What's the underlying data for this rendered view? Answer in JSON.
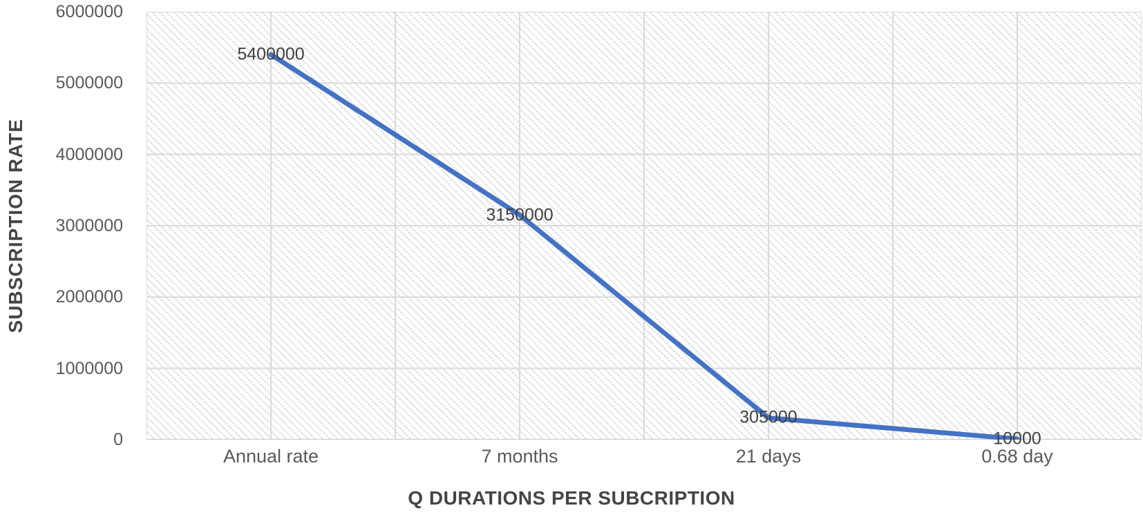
{
  "chart_data": {
    "type": "line",
    "title": "",
    "categories": [
      "Annual rate",
      "7 months",
      "21 days",
      "0.68 day"
    ],
    "series": [
      {
        "values": [
          5400000,
          3150000,
          305000,
          10000
        ]
      }
    ],
    "data_labels": [
      "5400000",
      "3150000",
      "305000",
      "10000"
    ],
    "xlabel": "Q DURATIONS PER SUBCRIPTION",
    "ylabel": "SUBSCRIPTION RATE",
    "ylim": [
      0,
      6000000
    ],
    "ytick_step": 1000000,
    "ytick_labels": [
      "0",
      "1000000",
      "2000000",
      "3000000",
      "4000000",
      "5000000",
      "6000000"
    ],
    "grid": "horizontal-and-vertical",
    "legend": "none",
    "data_label_position": "center",
    "plot_background": "light-downward-diagonal-hatch",
    "colors": {
      "line": "#4472C4",
      "gridline": "#D9D9D9",
      "axis_line": "#C6C6C6",
      "tick_text": "#595959",
      "data_label_text": "#3F3F3F",
      "axis_title_text": "#454545",
      "hatch": "#DCDCDC",
      "background": "#FFFFFF"
    }
  }
}
